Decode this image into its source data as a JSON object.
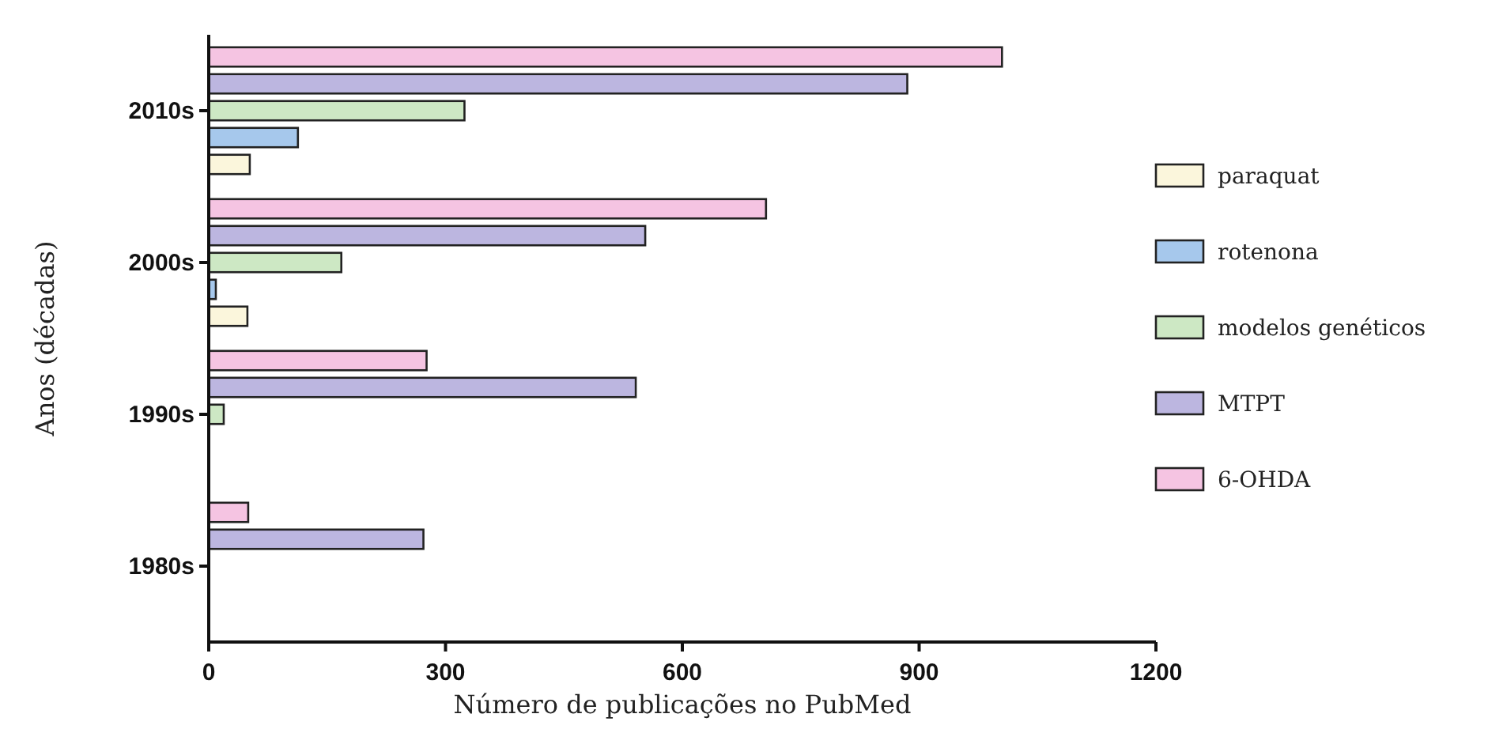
{
  "chart_data": {
    "type": "bar",
    "orientation": "horizontal",
    "xlabel": "Número de publicações no PubMed",
    "ylabel": "Anos (décadas)",
    "categories": [
      "2010s",
      "2000s",
      "1990s",
      "1980s"
    ],
    "series": [
      {
        "name": "paraquat",
        "color": "#fbf6dc",
        "values": [
          52,
          49,
          0,
          0
        ]
      },
      {
        "name": "rotenona",
        "color": "#a6c8ec",
        "values": [
          113,
          9,
          0,
          0
        ]
      },
      {
        "name": "modelos genéticos",
        "color": "#cde8c4",
        "values": [
          324,
          168,
          19,
          0
        ]
      },
      {
        "name": "MTPT",
        "color": "#bcb6e0",
        "values": [
          885,
          553,
          541,
          272
        ]
      },
      {
        "name": "6-OHDA",
        "color": "#f5c4e2",
        "values": [
          1005,
          706,
          276,
          50
        ]
      }
    ],
    "xlim": [
      0,
      1200
    ],
    "xticks": [
      0,
      300,
      600,
      900,
      1200
    ],
    "grid": false,
    "legend": "right"
  }
}
